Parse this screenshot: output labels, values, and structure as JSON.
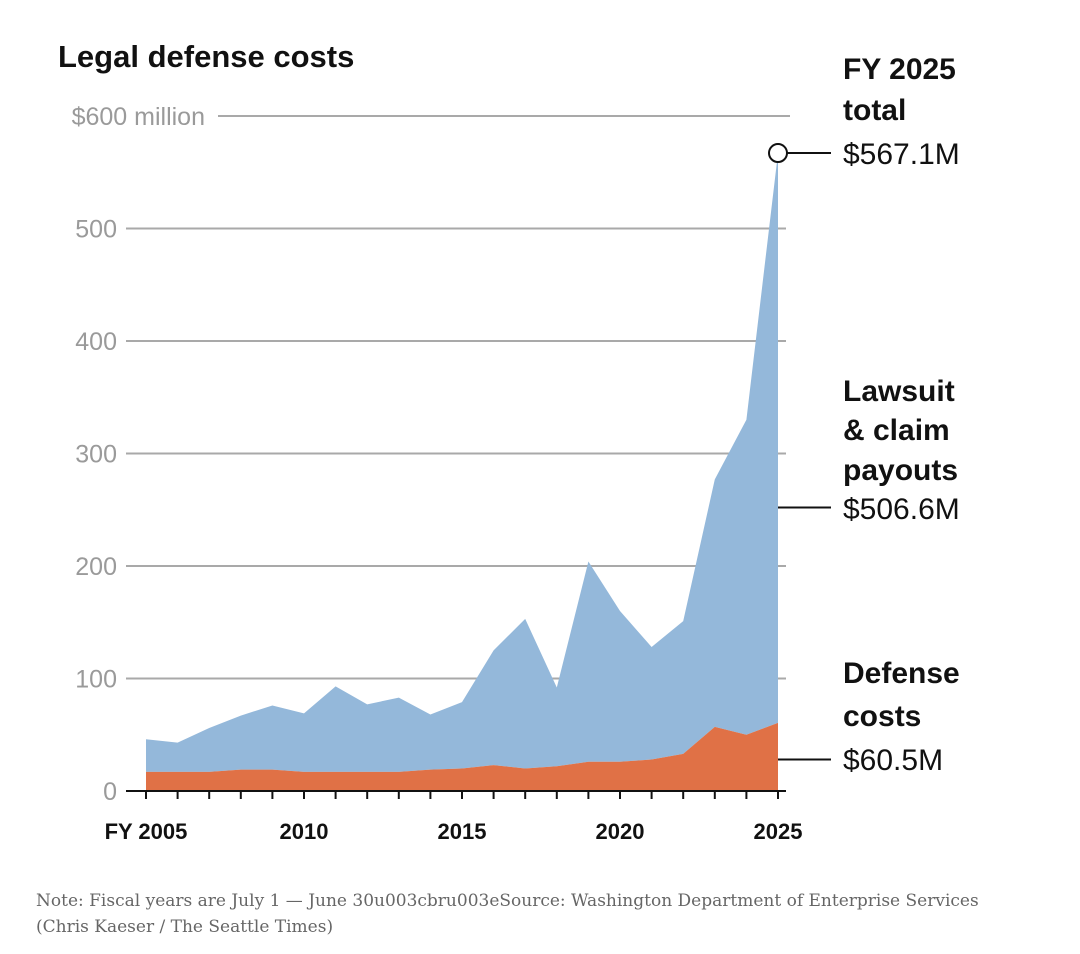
{
  "chart_data": {
    "type": "area",
    "title": "Legal defense costs",
    "stacked": true,
    "ylim": [
      0,
      600
    ],
    "yticks": [
      {
        "value": 0,
        "label": "0"
      },
      {
        "value": 100,
        "label": "100"
      },
      {
        "value": 200,
        "label": "200"
      },
      {
        "value": 300,
        "label": "300"
      },
      {
        "value": 400,
        "label": "400"
      },
      {
        "value": 500,
        "label": "500"
      },
      {
        "value": 600,
        "label": "$600 million"
      }
    ],
    "xlim": [
      2005,
      2025
    ],
    "xticks": [
      {
        "value": 2005,
        "label": "FY 2005"
      },
      {
        "value": 2010,
        "label": "2010"
      },
      {
        "value": 2015,
        "label": "2015"
      },
      {
        "value": 2020,
        "label": "2020"
      },
      {
        "value": 2025,
        "label": "2025"
      }
    ],
    "x": [
      2005,
      2006,
      2007,
      2008,
      2009,
      2010,
      2011,
      2012,
      2013,
      2014,
      2015,
      2016,
      2017,
      2018,
      2019,
      2020,
      2021,
      2022,
      2023,
      2024,
      2025
    ],
    "series": [
      {
        "name": "Defense costs",
        "color": "#e07146",
        "values": [
          17,
          17,
          17,
          19,
          19,
          17,
          17,
          17,
          17,
          19,
          20,
          23,
          20,
          22,
          26,
          26,
          28,
          33,
          57,
          50,
          60.5
        ]
      },
      {
        "name": "Lawsuit & claim payouts",
        "color": "#94b8da",
        "values": [
          29,
          26,
          39,
          48,
          57,
          52,
          76,
          60,
          66,
          49,
          59,
          102,
          133,
          70,
          178,
          134,
          100,
          118,
          220,
          280,
          506.6
        ]
      }
    ],
    "total_line": [
      46,
      43,
      56,
      67,
      76,
      69,
      93,
      77,
      83,
      68,
      79,
      125,
      153,
      92,
      204,
      160,
      128,
      151,
      277,
      330,
      567.1
    ],
    "annotations": {
      "total": {
        "line1": "FY 2025",
        "line2": "total",
        "value": "$567.1M",
        "y": 567.1
      },
      "payouts": {
        "line1": "Lawsuit",
        "line2": "& claim",
        "line3": "payouts",
        "value": "$506.6M",
        "y": 252
      },
      "defense": {
        "line1": "Defense",
        "line2": "costs",
        "value": "$60.5M",
        "y": 28
      }
    }
  },
  "footnote": "Note: Fiscal years are July 1 — June 30u003cbru003eSource: Washington Department of Enterprise Services (Chris Kaeser / The Seattle Times)"
}
